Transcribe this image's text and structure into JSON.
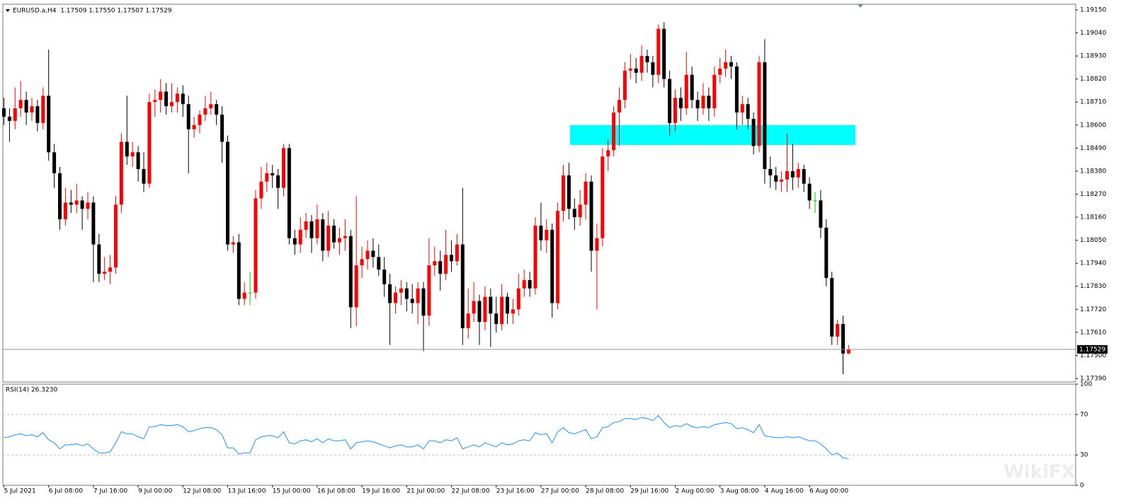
{
  "chart_data": {
    "type": "candlestick",
    "title": "EURUSD.a,H4  1.17509 1.17550 1.17507 1.17529",
    "categories": [
      "5 Jul 2021",
      null,
      null,
      null,
      null,
      null,
      null,
      null,
      "6 Jul 08:00",
      null,
      null,
      null,
      null,
      null,
      null,
      null,
      "7 Jul 16:00",
      null,
      null,
      null,
      null,
      null,
      null,
      null,
      "9 Jul 00:00",
      null,
      null,
      null,
      null,
      null,
      null,
      null,
      "12 Jul 08:00",
      null,
      null,
      null,
      null,
      null,
      null,
      null,
      "13 Jul 16:00",
      null,
      null,
      null,
      null,
      null,
      null,
      null,
      "15 Jul 00:00",
      null,
      null,
      null,
      null,
      null,
      null,
      null,
      "16 Jul 08:00",
      null,
      null,
      null,
      null,
      null,
      null,
      null,
      "19 Jul 16:00",
      null,
      null,
      null,
      null,
      null,
      null,
      null,
      "21 Jul 00:00",
      null,
      null,
      null,
      null,
      null,
      null,
      null,
      "22 Jul 08:00",
      null,
      null,
      null,
      null,
      null,
      null,
      null,
      "23 Jul 16:00",
      null,
      null,
      null,
      null,
      null,
      null,
      null,
      "27 Jul 00:00",
      null,
      null,
      null,
      null,
      null,
      null,
      null,
      "28 Jul 08:00",
      null,
      null,
      null,
      null,
      null,
      null,
      null,
      "29 Jul 16:00",
      null,
      null,
      null,
      null,
      null,
      null,
      null,
      "2 Aug 00:00",
      null,
      null,
      null,
      null,
      null,
      null,
      null,
      "3 Aug 08:00",
      null,
      null,
      null,
      null,
      null,
      null,
      null,
      "4 Aug 16:00",
      null,
      null,
      null,
      null,
      null,
      null,
      null,
      "6 Aug 00:00",
      null,
      null,
      null,
      null,
      null,
      null,
      null
    ],
    "ohlc": [
      [
        1.1868,
        1.1873,
        1.186,
        1.1864
      ],
      [
        1.1864,
        1.1868,
        1.1852,
        1.1862
      ],
      [
        1.1862,
        1.1878,
        1.1858,
        1.1868
      ],
      [
        1.1868,
        1.1881,
        1.1864,
        1.1872
      ],
      [
        1.1872,
        1.1876,
        1.186,
        1.1866
      ],
      [
        1.1866,
        1.1873,
        1.1862,
        1.1869
      ],
      [
        1.1869,
        1.1872,
        1.1857,
        1.1861
      ],
      [
        1.1861,
        1.1878,
        1.1858,
        1.1874
      ],
      [
        1.1874,
        1.1896,
        1.1843,
        1.1847
      ],
      [
        1.1847,
        1.1851,
        1.183,
        1.1837
      ],
      [
        1.1837,
        1.184,
        1.181,
        1.1815
      ],
      [
        1.1815,
        1.183,
        1.1812,
        1.1823
      ],
      [
        1.1823,
        1.1829,
        1.1818,
        1.1822
      ],
      [
        1.1822,
        1.1832,
        1.1818,
        1.1824
      ],
      [
        1.1824,
        1.1826,
        1.181,
        1.182
      ],
      [
        1.182,
        1.1828,
        1.1815,
        1.1823
      ],
      [
        1.1823,
        1.1826,
        1.1785,
        1.1803
      ],
      [
        1.1803,
        1.1808,
        1.1785,
        1.1789
      ],
      [
        1.1789,
        1.1797,
        1.1786,
        1.179
      ],
      [
        1.179,
        1.1798,
        1.1784,
        1.1792
      ],
      [
        1.1792,
        1.1826,
        1.1789,
        1.1822
      ],
      [
        1.1822,
        1.1856,
        1.1818,
        1.1852
      ],
      [
        1.1852,
        1.1874,
        1.1841,
        1.1845
      ],
      [
        1.1845,
        1.1852,
        1.184,
        1.1847
      ],
      [
        1.1847,
        1.185,
        1.1833,
        1.1839
      ],
      [
        1.1839,
        1.1847,
        1.1828,
        1.1832
      ],
      [
        1.1832,
        1.1875,
        1.183,
        1.1871
      ],
      [
        1.1871,
        1.1877,
        1.1864,
        1.1872
      ],
      [
        1.1872,
        1.1882,
        1.1866,
        1.1876
      ],
      [
        1.1876,
        1.188,
        1.1865,
        1.1869
      ],
      [
        1.1869,
        1.188,
        1.1866,
        1.1871
      ],
      [
        1.1871,
        1.1878,
        1.1866,
        1.1875
      ],
      [
        1.1875,
        1.1879,
        1.1864,
        1.187
      ],
      [
        1.187,
        1.1874,
        1.1837,
        1.1858
      ],
      [
        1.1858,
        1.1864,
        1.1854,
        1.186
      ],
      [
        1.186,
        1.1867,
        1.1856,
        1.1865
      ],
      [
        1.1865,
        1.1874,
        1.1862,
        1.1868
      ],
      [
        1.1868,
        1.1876,
        1.1865,
        1.187
      ],
      [
        1.187,
        1.1872,
        1.186,
        1.1865
      ],
      [
        1.1865,
        1.1869,
        1.1842,
        1.1852
      ],
      [
        1.1852,
        1.1855,
        1.18,
        1.1803
      ],
      [
        1.1803,
        1.1807,
        1.1799,
        1.1804
      ],
      [
        1.1804,
        1.1808,
        1.1774,
        1.1777
      ],
      [
        1.1777,
        1.1785,
        1.1774,
        1.178
      ],
      [
        1.178,
        1.179,
        1.1774,
        1.178
      ],
      [
        1.178,
        1.1829,
        1.1777,
        1.1825
      ],
      [
        1.1825,
        1.184,
        1.182,
        1.1833
      ],
      [
        1.1833,
        1.1842,
        1.1828,
        1.1837
      ],
      [
        1.1837,
        1.1841,
        1.183,
        1.1836
      ],
      [
        1.1836,
        1.1839,
        1.182,
        1.183
      ],
      [
        1.183,
        1.1851,
        1.1826,
        1.1849
      ],
      [
        1.1849,
        1.1851,
        1.1803,
        1.1806
      ],
      [
        1.1806,
        1.181,
        1.1798,
        1.1803
      ],
      [
        1.1803,
        1.1816,
        1.1799,
        1.181
      ],
      [
        1.181,
        1.1818,
        1.1806,
        1.1814
      ],
      [
        1.1814,
        1.1817,
        1.1799,
        1.1806
      ],
      [
        1.1806,
        1.1822,
        1.1803,
        1.1815
      ],
      [
        1.1815,
        1.1818,
        1.1795,
        1.18
      ],
      [
        1.18,
        1.1819,
        1.1797,
        1.1812
      ],
      [
        1.1812,
        1.1815,
        1.1801,
        1.1804
      ],
      [
        1.1804,
        1.1811,
        1.1798,
        1.1806
      ],
      [
        1.1806,
        1.1815,
        1.18,
        1.1807
      ],
      [
        1.1807,
        1.181,
        1.1763,
        1.1773
      ],
      [
        1.1773,
        1.1826,
        1.1764,
        1.1793
      ],
      [
        1.1793,
        1.1802,
        1.1787,
        1.1796
      ],
      [
        1.1796,
        1.1805,
        1.1791,
        1.18
      ],
      [
        1.18,
        1.1806,
        1.1792,
        1.1797
      ],
      [
        1.1797,
        1.1803,
        1.1788,
        1.1791
      ],
      [
        1.1791,
        1.1797,
        1.1778,
        1.1784
      ],
      [
        1.1784,
        1.1789,
        1.1755,
        1.1775
      ],
      [
        1.1775,
        1.1783,
        1.177,
        1.178
      ],
      [
        1.178,
        1.1786,
        1.1774,
        1.1782
      ],
      [
        1.1782,
        1.1785,
        1.1771,
        1.1777
      ],
      [
        1.1777,
        1.1784,
        1.177,
        1.1775
      ],
      [
        1.1775,
        1.1785,
        1.1765,
        1.1782
      ],
      [
        1.1782,
        1.1785,
        1.1752,
        1.1769
      ],
      [
        1.1769,
        1.1806,
        1.1764,
        1.1793
      ],
      [
        1.1793,
        1.1802,
        1.1788,
        1.1795
      ],
      [
        1.1795,
        1.18,
        1.1781,
        1.1789
      ],
      [
        1.1789,
        1.181,
        1.1786,
        1.1798
      ],
      [
        1.1798,
        1.1805,
        1.179,
        1.1795
      ],
      [
        1.1795,
        1.1808,
        1.1793,
        1.1803
      ],
      [
        1.1803,
        1.183,
        1.1755,
        1.1763
      ],
      [
        1.1763,
        1.1782,
        1.1758,
        1.177
      ],
      [
        1.177,
        1.1785,
        1.1766,
        1.1776
      ],
      [
        1.1776,
        1.1779,
        1.1755,
        1.1766
      ],
      [
        1.1766,
        1.1783,
        1.1762,
        1.1778
      ],
      [
        1.1778,
        1.1782,
        1.1754,
        1.177
      ],
      [
        1.177,
        1.1778,
        1.1761,
        1.1765
      ],
      [
        1.1765,
        1.1784,
        1.1762,
        1.1778
      ],
      [
        1.1778,
        1.178,
        1.1765,
        1.177
      ],
      [
        1.177,
        1.1777,
        1.1765,
        1.1772
      ],
      [
        1.1772,
        1.1789,
        1.1769,
        1.1782
      ],
      [
        1.1782,
        1.1791,
        1.1778,
        1.1786
      ],
      [
        1.1786,
        1.179,
        1.1778,
        1.1782
      ],
      [
        1.1782,
        1.1816,
        1.1779,
        1.1812
      ],
      [
        1.1812,
        1.1823,
        1.18,
        1.1805
      ],
      [
        1.1805,
        1.1815,
        1.1799,
        1.181
      ],
      [
        1.181,
        1.1813,
        1.1768,
        1.1775
      ],
      [
        1.1775,
        1.1823,
        1.1772,
        1.1819
      ],
      [
        1.1819,
        1.1841,
        1.1814,
        1.1836
      ],
      [
        1.1836,
        1.1842,
        1.1815,
        1.182
      ],
      [
        1.182,
        1.1825,
        1.181,
        1.1816
      ],
      [
        1.1816,
        1.1829,
        1.1812,
        1.1822
      ],
      [
        1.1822,
        1.1837,
        1.1815,
        1.1833
      ],
      [
        1.1833,
        1.1836,
        1.179,
        1.18
      ],
      [
        1.18,
        1.1813,
        1.1772,
        1.1806
      ],
      [
        1.1806,
        1.1849,
        1.1802,
        1.1845
      ],
      [
        1.1845,
        1.1853,
        1.1838,
        1.1848
      ],
      [
        1.1848,
        1.1869,
        1.1845,
        1.1866
      ],
      [
        1.1866,
        1.1878,
        1.185,
        1.1872
      ],
      [
        1.1872,
        1.189,
        1.1868,
        1.1886
      ],
      [
        1.1886,
        1.1894,
        1.1882,
        1.1887
      ],
      [
        1.1887,
        1.1892,
        1.188,
        1.1885
      ],
      [
        1.1885,
        1.1898,
        1.1881,
        1.1893
      ],
      [
        1.1893,
        1.1896,
        1.1885,
        1.189
      ],
      [
        1.189,
        1.1893,
        1.1878,
        1.1884
      ],
      [
        1.1884,
        1.1908,
        1.188,
        1.1906
      ],
      [
        1.1906,
        1.1909,
        1.1878,
        1.1882
      ],
      [
        1.1882,
        1.1886,
        1.1855,
        1.1861
      ],
      [
        1.1861,
        1.1877,
        1.1857,
        1.1873
      ],
      [
        1.1873,
        1.1878,
        1.1862,
        1.1868
      ],
      [
        1.1868,
        1.1895,
        1.1865,
        1.1884
      ],
      [
        1.1884,
        1.1888,
        1.1868,
        1.1872
      ],
      [
        1.1872,
        1.1876,
        1.1862,
        1.1868
      ],
      [
        1.1868,
        1.188,
        1.1865,
        1.1874
      ],
      [
        1.1874,
        1.1878,
        1.1862,
        1.1868
      ],
      [
        1.1868,
        1.1888,
        1.1864,
        1.1884
      ],
      [
        1.1884,
        1.1892,
        1.188,
        1.1887
      ],
      [
        1.1887,
        1.1896,
        1.1883,
        1.189
      ],
      [
        1.189,
        1.1893,
        1.1882,
        1.1888
      ],
      [
        1.1888,
        1.189,
        1.1858,
        1.1866
      ],
      [
        1.1866,
        1.1874,
        1.186,
        1.187
      ],
      [
        1.187,
        1.1873,
        1.1858,
        1.1863
      ],
      [
        1.1863,
        1.1866,
        1.1846,
        1.185
      ],
      [
        1.185,
        1.1893,
        1.1847,
        1.189
      ],
      [
        1.189,
        1.1901,
        1.1832,
        1.1839
      ],
      [
        1.1839,
        1.1845,
        1.183,
        1.1836
      ],
      [
        1.1836,
        1.184,
        1.1829,
        1.1833
      ],
      [
        1.1833,
        1.1838,
        1.1828,
        1.1834
      ],
      [
        1.1834,
        1.1856,
        1.1828,
        1.1838
      ],
      [
        1.1838,
        1.1851,
        1.1829,
        1.1835
      ],
      [
        1.1835,
        1.1842,
        1.183,
        1.1839
      ],
      [
        1.1839,
        1.1841,
        1.1828,
        1.1832
      ],
      [
        1.1832,
        1.1835,
        1.182,
        1.1824
      ],
      [
        1.1824,
        1.1828,
        1.1818,
        1.1824
      ],
      [
        1.1824,
        1.1829,
        1.1806,
        1.1811
      ],
      [
        1.1811,
        1.1815,
        1.1783,
        1.1787
      ],
      [
        1.1787,
        1.179,
        1.1755,
        1.1759
      ],
      [
        1.1759,
        1.1767,
        1.1755,
        1.1765
      ],
      [
        1.1765,
        1.1769,
        1.1741,
        1.17509
      ],
      [
        1.17509,
        1.1755,
        1.17507,
        1.17529
      ]
    ],
    "up_color": "#ff0000",
    "down_color": "#000000",
    "doji_color": "#00c800",
    "ylim": [
      1.17373,
      1.19177
    ],
    "yticks": [
      {
        "value": 1.1915,
        "label": "1.19150"
      },
      {
        "value": 1.1904,
        "label": "1.19040"
      },
      {
        "value": 1.1893,
        "label": "1.18930"
      },
      {
        "value": 1.1882,
        "label": "1.18820"
      },
      {
        "value": 1.1871,
        "label": "1.18710"
      },
      {
        "value": 1.186,
        "label": "1.18600"
      },
      {
        "value": 1.1849,
        "label": "1.18490"
      },
      {
        "value": 1.1838,
        "label": "1.18380"
      },
      {
        "value": 1.1827,
        "label": "1.18270"
      },
      {
        "value": 1.1816,
        "label": "1.18160"
      },
      {
        "value": 1.1805,
        "label": "1.18050"
      },
      {
        "value": 1.1794,
        "label": "1.17940"
      },
      {
        "value": 1.1783,
        "label": "1.17830"
      },
      {
        "value": 1.1772,
        "label": "1.17720"
      },
      {
        "value": 1.1761,
        "label": "1.17610"
      },
      {
        "value": 1.175,
        "label": "1.17500"
      },
      {
        "value": 1.1739,
        "label": "1.17390"
      }
    ],
    "zone": {
      "ylim": [
        1.18505,
        1.186
      ],
      "color": "#00ffff"
    },
    "rsi": {
      "label": "RSI(14) 26.3230",
      "color": "#1e90ff",
      "ylim": [
        0,
        100
      ],
      "yticks": [
        100,
        70,
        30,
        0
      ],
      "values": [
        47,
        48,
        50,
        51,
        49,
        50,
        48,
        52,
        45,
        42,
        36,
        40,
        40,
        41,
        39,
        41,
        36,
        32,
        32,
        33,
        42,
        53,
        51,
        51,
        48,
        46,
        58,
        58,
        60,
        59,
        59,
        60,
        58,
        53,
        54,
        56,
        57,
        57,
        55,
        50,
        37,
        37,
        31,
        32,
        32,
        45,
        48,
        49,
        49,
        47,
        53,
        42,
        41,
        44,
        45,
        43,
        46,
        42,
        46,
        44,
        44,
        45,
        36,
        42,
        43,
        44,
        43,
        41,
        39,
        37,
        39,
        40,
        38,
        38,
        40,
        36,
        44,
        44,
        42,
        45,
        44,
        47,
        36,
        38,
        40,
        38,
        42,
        40,
        38,
        42,
        40,
        41,
        44,
        45,
        44,
        52,
        50,
        51,
        42,
        53,
        57,
        52,
        51,
        53,
        55,
        46,
        48,
        57,
        58,
        62,
        63,
        66,
        66,
        65,
        67,
        66,
        64,
        69,
        62,
        57,
        59,
        58,
        61,
        58,
        57,
        58,
        57,
        60,
        61,
        62,
        61,
        56,
        57,
        55,
        52,
        60,
        49,
        48,
        47,
        47,
        48,
        47,
        48,
        46,
        44,
        44,
        41,
        36,
        30,
        32,
        27,
        26.323
      ]
    },
    "watermark": "WikiFX"
  }
}
